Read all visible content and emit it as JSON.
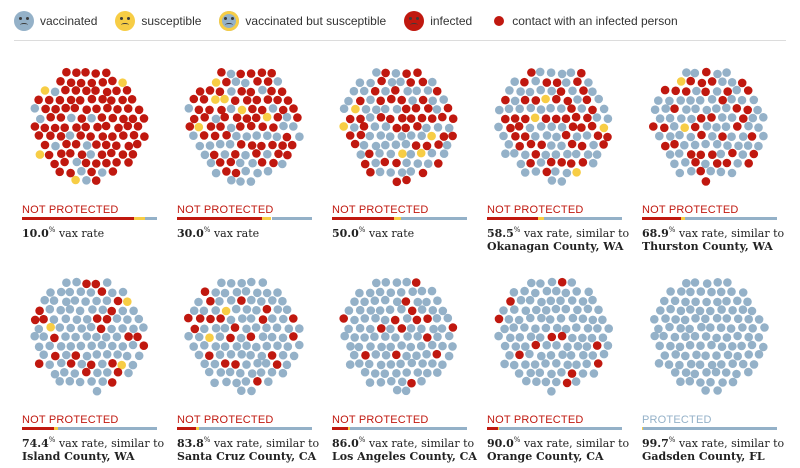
{
  "colors": {
    "vaccinated": "#94b1c8",
    "susceptible": "#f7cd45",
    "vaccinated_susceptible": "#94b1c8",
    "infected": "#c0180f",
    "contact": "#c0180f",
    "not_protected": "#c0180f",
    "protected": "#94b1c8"
  },
  "legend": [
    {
      "key": "vaccinated",
      "label": "vaccinated",
      "icon": "vaccinated-face-icon"
    },
    {
      "key": "susceptible",
      "label": "susceptible",
      "icon": "susceptible-face-icon"
    },
    {
      "key": "vaccinated_susceptible",
      "label": "vaccinated but susceptible",
      "icon": "vaccinated-susceptible-face-icon"
    },
    {
      "key": "infected",
      "label": "infected",
      "icon": "infected-face-icon"
    },
    {
      "key": "contact",
      "label": "contact with an infected person",
      "icon": "contact-dot-icon"
    }
  ],
  "panels": [
    {
      "status": "NOT PROTECTED",
      "protected": false,
      "rate": "10.0",
      "pct": "%",
      "text": " vax rate",
      "place": "",
      "red_share": 0.83,
      "yellow_share": 0.08
    },
    {
      "status": "NOT PROTECTED",
      "protected": false,
      "rate": "30.0",
      "pct": "%",
      "text": " vax rate",
      "place": "",
      "red_share": 0.63,
      "yellow_share": 0.07
    },
    {
      "status": "NOT PROTECTED",
      "protected": false,
      "rate": "50.0",
      "pct": "%",
      "text": " vax rate",
      "place": "",
      "red_share": 0.46,
      "yellow_share": 0.05
    },
    {
      "status": "NOT PROTECTED",
      "protected": false,
      "rate": "58.5",
      "pct": "%",
      "text": " vax rate, similar to",
      "place": "Okanagan County, WA",
      "red_share": 0.38,
      "yellow_share": 0.04
    },
    {
      "status": "NOT PROTECTED",
      "protected": false,
      "rate": "68.9",
      "pct": "%",
      "text": " vax rate, similar to",
      "place": "Thurston County, WA",
      "red_share": 0.29,
      "yellow_share": 0.03
    },
    {
      "status": "NOT PROTECTED",
      "protected": false,
      "rate": "74.4",
      "pct": "%",
      "text": " vax rate, similar to",
      "place": "Island County, WA",
      "red_share": 0.24,
      "yellow_share": 0.03
    },
    {
      "status": "NOT PROTECTED",
      "protected": false,
      "rate": "83.8",
      "pct": "%",
      "text": " vax rate, similar to",
      "place": "Santa Cruz County, CA",
      "red_share": 0.14,
      "yellow_share": 0.02
    },
    {
      "status": "NOT PROTECTED",
      "protected": false,
      "rate": "86.0",
      "pct": "%",
      "text": " vax rate, similar to",
      "place": "Los Angeles County, CA",
      "red_share": 0.12,
      "yellow_share": 0.01
    },
    {
      "status": "NOT PROTECTED",
      "protected": false,
      "rate": "90.0",
      "pct": "%",
      "text": " vax rate, similar to",
      "place": "Orange County, CA",
      "red_share": 0.08,
      "yellow_share": 0.01
    },
    {
      "status": "PROTECTED",
      "protected": true,
      "rate": "99.7",
      "pct": "%",
      "text": " vax rate, similar to",
      "place": "Gadsden County, FL",
      "red_share": 0.0,
      "yellow_share": 0.01
    }
  ]
}
